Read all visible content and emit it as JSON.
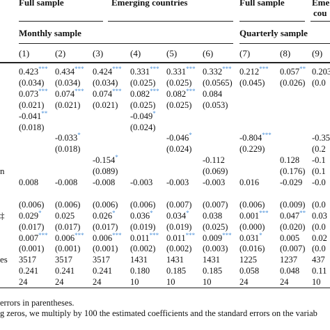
{
  "headers": {
    "full_sample_1": "Full sample",
    "emerging_countries": "Emerging countries",
    "full_sample_2": "Full sample",
    "emerging_partial_1": "Eme",
    "emerging_partial_2": "cou",
    "monthly_sample": "Monthly sample",
    "quarterly_sample": "Quarterly sample"
  },
  "column_numbers": [
    "(1)",
    "(2)",
    "(3)",
    "(4)",
    "(5)",
    "(6)",
    "(7)",
    "(8)",
    "(9)"
  ],
  "row_labels": [
    {
      "text": "n",
      "row": 9
    },
    {
      "text": "‡",
      "row": 13
    },
    {
      "text": "es",
      "row": 17
    }
  ],
  "rows": [
    [
      "0.423|***",
      "0.434|***",
      "0.424|***",
      "0.331|***",
      "0.331|***",
      "0.332|***",
      "0.212|***",
      "0.057|**",
      "0.203"
    ],
    [
      "(0.034)",
      "(0.034)",
      "(0.034)",
      "(0.025)",
      "(0.025)",
      "(0.0565)",
      "(0.045)",
      "(0.026)",
      "(0.0"
    ],
    [
      "0.073|***",
      "0.074|***",
      "0.074|***",
      "0.082|***",
      "0.082|***",
      "0.084",
      "",
      "",
      ""
    ],
    [
      "(0.021)",
      "(0.021)",
      "(0.021)",
      "(0.025)",
      "(0.025)",
      "(0.053)",
      "",
      "",
      ""
    ],
    [
      "-0.041|**",
      "",
      "",
      "-0.049|*",
      "",
      "",
      "",
      "",
      ""
    ],
    [
      "(0.018)",
      "",
      "",
      "(0.024)",
      "",
      "",
      "",
      "",
      ""
    ],
    [
      "",
      "-0.033|*",
      "",
      "",
      "-0.046|*",
      "",
      "-0.804|***",
      "",
      "-0.35"
    ],
    [
      "",
      "(0.018)",
      "",
      "",
      "(0.024)",
      "",
      "(0.229)",
      "",
      "(0.2"
    ],
    [
      "",
      "",
      "-0.154|*",
      "",
      "",
      "-0.112",
      "",
      "0.128",
      "-0.1"
    ],
    [
      "",
      "",
      "(0.089)",
      "",
      "",
      "(0.069)",
      "",
      "(0.176)",
      "(0.1"
    ],
    [
      "0.008",
      "-0.008",
      "-0.008",
      "-0.003",
      "-0.003",
      "-0.003",
      "0.016",
      "-0.029",
      "-0.0"
    ],
    [
      "",
      "",
      "",
      "",
      "",
      "",
      "",
      "",
      ""
    ],
    [
      "(0.006)",
      "(0.006)",
      "(0.006)",
      "(0.006)",
      "(0.007)",
      "(0.007)",
      "(0.006)",
      "(0.009)",
      "(0.0"
    ],
    [
      "0.029|*",
      "0.025",
      "0.026|*",
      "0.036|*",
      "0.034|*",
      "0.038",
      "0.001|***",
      "0.047|**",
      "0.03"
    ],
    [
      "(0.017)",
      "(0.017)",
      "(0.017)",
      "(0.019)",
      "(0.019)",
      "(0.025)",
      "(0.000)",
      "(0.020)",
      "(0.0"
    ],
    [
      "0.007|***",
      "0.006|***",
      "0.006|***",
      "0.011|***",
      "0.011|***",
      "0.009|***",
      "0.031|*",
      "0.005",
      "0.02"
    ],
    [
      "(0.001)",
      "(0.001)",
      "(0.001)",
      "(0.002)",
      "(0.002)",
      "(0.003)",
      "(0.016)",
      "(0.007)",
      "(0.0"
    ],
    [
      "3517",
      "3517",
      "3517",
      "1431",
      "1431",
      "1431",
      "1225",
      "1237",
      "437"
    ],
    [
      "0.241",
      "0.241",
      "0.241",
      "0.180",
      "0.185",
      "0.185",
      "0.058",
      "0.048",
      "0.11"
    ],
    [
      "24",
      "24",
      "24",
      "10",
      "10",
      "10",
      "24",
      "24",
      "10"
    ]
  ],
  "footnotes": {
    "line1": "errors in parentheses.",
    "line2": "g zeros, we multiply by 100 the estimated coefficients and the standard errors on the variab"
  }
}
